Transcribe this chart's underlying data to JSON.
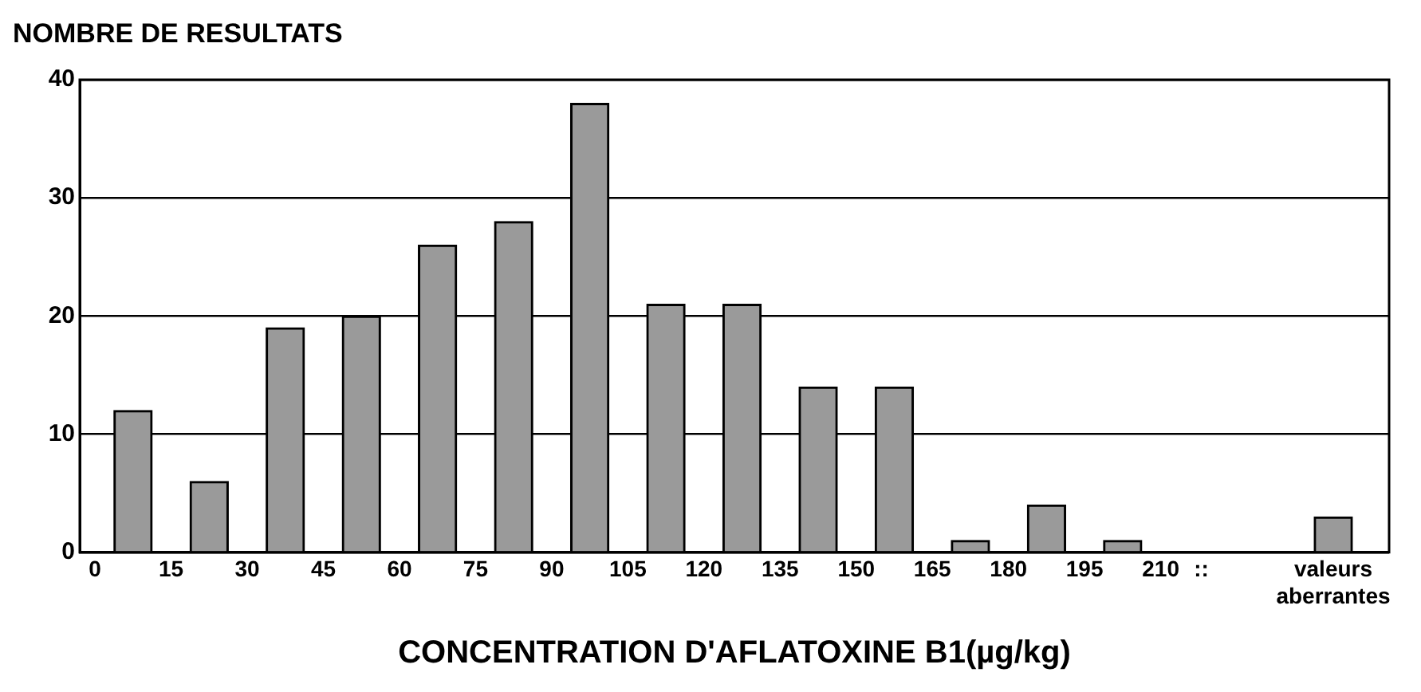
{
  "chart_data": {
    "type": "bar",
    "ylabel": "NOMBRE DE RESULTATS",
    "xlabel": "CONCENTRATION D'AFLATOXINE B1(µg/kg)",
    "x": [
      7.5,
      22.5,
      37.5,
      52.5,
      67.5,
      82.5,
      97.5,
      112.5,
      127.5,
      142.5,
      157.5,
      172.5,
      187.5,
      202.5,
      244
    ],
    "values": [
      12,
      6,
      19,
      20,
      26,
      28,
      38,
      21,
      21,
      14,
      14,
      1,
      4,
      1,
      3
    ],
    "color": "#9a9a9a",
    "xlim": [
      -3,
      255
    ],
    "xticks": [
      0,
      15,
      30,
      45,
      60,
      75,
      90,
      105,
      120,
      135,
      150,
      165,
      180,
      195,
      210,
      {
        "value": 218,
        "label": "::"
      },
      {
        "value": 244,
        "label": "valeurs aberrantes"
      }
    ],
    "ylim": [
      0,
      40
    ],
    "yticks": [
      0,
      10,
      20,
      30,
      40
    ],
    "grid": "y",
    "legend": false
  }
}
